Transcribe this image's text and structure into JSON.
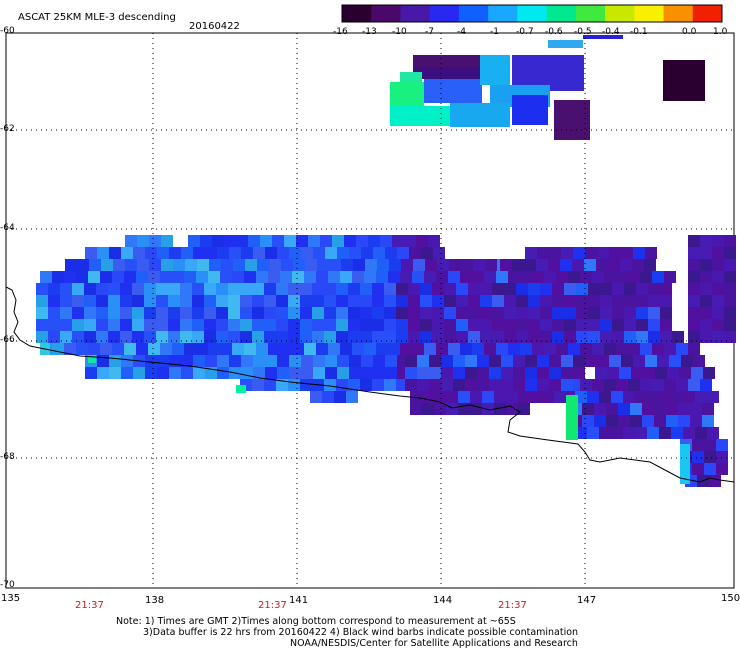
{
  "header": {
    "title": "ASCAT 25KM MLE-3 descending",
    "date": "20160422"
  },
  "colorbar": {
    "labels": [
      "-16",
      "-13",
      "-10",
      "-7",
      "-4",
      "-1",
      "-0.7",
      "-0.6",
      "-0.5",
      "-0.4",
      "-0.1",
      "0.0",
      "1.0"
    ],
    "colors": [
      "#2a0030",
      "#4a0868",
      "#4818a8",
      "#2828f0",
      "#1060ff",
      "#18a8ff",
      "#00e8f0",
      "#00e890",
      "#40e840",
      "#c8e800",
      "#f8f000",
      "#f89000",
      "#f02000"
    ]
  },
  "axes": {
    "y_labels": [
      "-60",
      "-62",
      "-64",
      "-66",
      "-68",
      "-70"
    ],
    "x_labels": [
      "135",
      "138",
      "141",
      "144",
      "147",
      "150"
    ]
  },
  "times": [
    "21:37",
    "21:37",
    "21:37"
  ],
  "notes": {
    "line1": "Note: 1) Times are GMT 2)Times along bottom correspond to measurement at ~65S",
    "line2": "3)Data buffer is 22 hrs from 20160422 4) Black wind barbs indicate possible contamination",
    "line3": "NOAA/NESDIS/Center for Satellite Applications and Research"
  }
}
